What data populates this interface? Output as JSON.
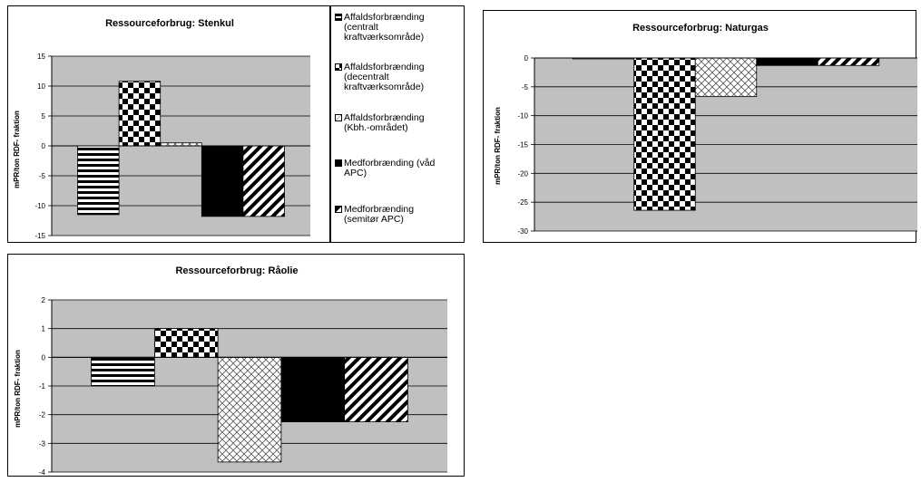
{
  "chart_data": [
    {
      "type": "bar",
      "title": "Ressourceforbrug: Stenkul",
      "ylabel": "mPR/ton RDF- fraktion",
      "ylim": [
        -15,
        15
      ],
      "yticks": [
        "15",
        "10",
        "5",
        "0",
        "-5",
        "-10",
        "-15"
      ],
      "yticks_values": [
        15,
        10,
        5,
        0,
        -5,
        -10,
        -15
      ],
      "categories": [
        "Affaldsforbrænding (centralt kraftværksområde)",
        "Affaldsforbrænding (decentralt kraftværksområde)",
        "Affaldsforbrænding (Kbh.-området)",
        "Medforbrænding (våd APC)",
        "Medforbrænding (semitør APC)"
      ],
      "values": [
        -11.5,
        10.8,
        0.5,
        -11.8,
        -11.8
      ]
    },
    {
      "type": "bar",
      "title": "Ressourceforbrug: Naturgas",
      "ylabel": "mPR/ton RDF- fraktion",
      "ylim": [
        -30,
        0
      ],
      "yticks": [
        "0",
        "-5",
        "-10",
        "-15",
        "-20",
        "-25",
        "-30"
      ],
      "yticks_values": [
        0,
        -5,
        -10,
        -15,
        -20,
        -25,
        -30
      ],
      "categories": [
        "Affaldsforbrænding (centralt kraftværksområde)",
        "Affaldsforbrænding (decentralt kraftværksområde)",
        "Affaldsforbrænding (Kbh.-området)",
        "Medforbrænding (våd APC)",
        "Medforbrænding (semitør APC)"
      ],
      "values": [
        -0.1,
        -26.4,
        -6.7,
        -1.3,
        -1.3
      ]
    },
    {
      "type": "bar",
      "title": "Ressourceforbrug: Råolie",
      "ylabel": "mPR/ton RDF- fraktion",
      "ylim": [
        -4,
        2
      ],
      "yticks": [
        "2",
        "1",
        "0",
        "-1",
        "-2",
        "-3",
        "-4"
      ],
      "yticks_values": [
        2,
        1,
        0,
        -1,
        -2,
        -3,
        -4
      ],
      "categories": [
        "Affaldsforbrænding (centralt kraftværksområde)",
        "Affaldsforbrænding (decentralt kraftværksområde)",
        "Affaldsforbrænding (Kbh.-området)",
        "Medforbrænding (våd APC)",
        "Medforbrænding (semitør APC)"
      ],
      "values": [
        -1.0,
        1.0,
        -3.65,
        -2.25,
        -2.25
      ]
    }
  ],
  "legend": {
    "items": [
      {
        "label": "Affaldsforbrænding\n(centralt\nkraftværksområde)",
        "pattern": "hstripe"
      },
      {
        "label": "Affaldsforbrænding\n(decentralt\nkraftværksområde)",
        "pattern": "checker"
      },
      {
        "label": "Affaldsforbrænding\n(Kbh.-området)",
        "pattern": "diamond"
      },
      {
        "label": "Medforbrænding (våd\nAPC)",
        "pattern": "solid"
      },
      {
        "label": "Medforbrænding\n(semitør APC)",
        "pattern": "diag"
      }
    ]
  },
  "colors": {
    "plot_bg": "#c0c0c0",
    "bar_dark": "#000000",
    "bar_light": "#ffffff"
  }
}
